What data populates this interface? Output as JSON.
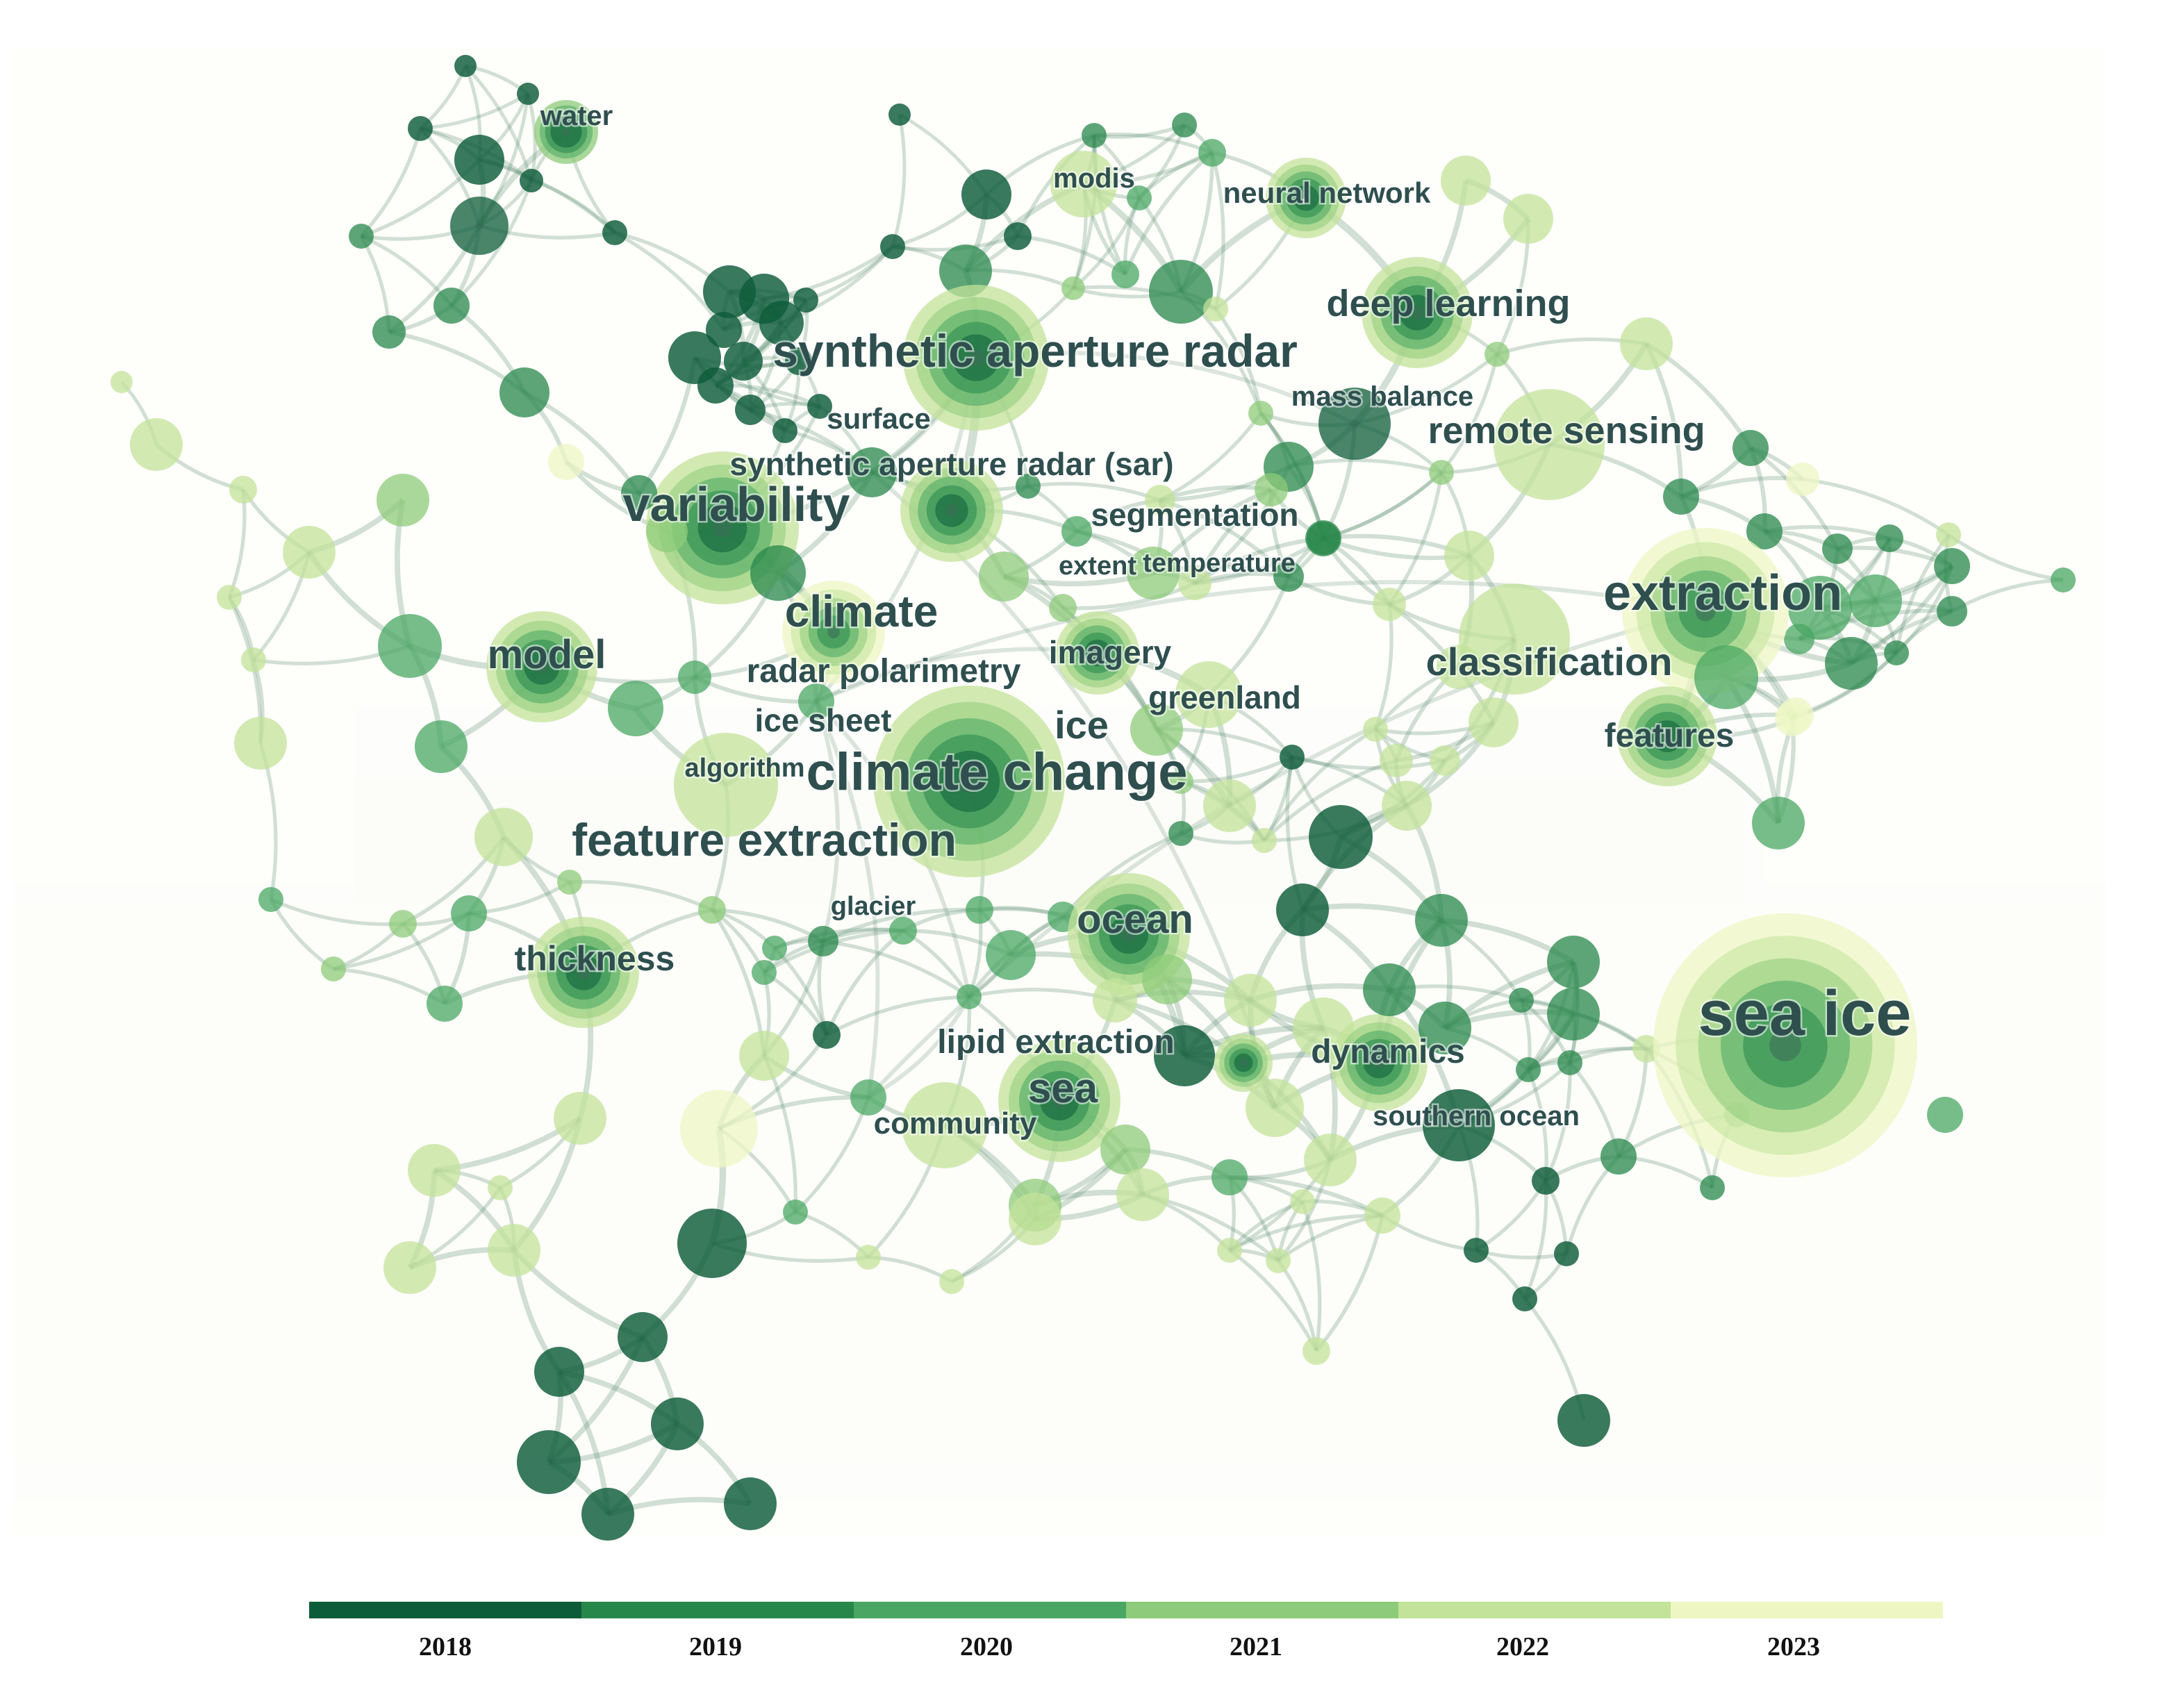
{
  "colors": {
    "2018": "#0d5c39",
    "2019": "#27874a",
    "2020": "#49a763",
    "2021": "#8ecb7a",
    "2022": "#c3e39a",
    "2023": "#eef7c4",
    "label": "#2f4f4f",
    "edge": "#5f8f73"
  },
  "legend": {
    "years": [
      "2018",
      "2019",
      "2020",
      "2021",
      "2022",
      "2023"
    ]
  },
  "labels": [
    {
      "text": "water"
    },
    {
      "text": "modis"
    },
    {
      "text": "neural network"
    },
    {
      "text": "deep learning"
    },
    {
      "text": "synthetic aperture radar"
    },
    {
      "text": "mass balance"
    },
    {
      "text": "surface"
    },
    {
      "text": "remote sensing"
    },
    {
      "text": "synthetic aperture radar (sar)"
    },
    {
      "text": "variability"
    },
    {
      "text": "segmentation"
    },
    {
      "text": "extent"
    },
    {
      "text": "temperature"
    },
    {
      "text": "extraction"
    },
    {
      "text": "climate"
    },
    {
      "text": "model"
    },
    {
      "text": "imagery"
    },
    {
      "text": "classification"
    },
    {
      "text": "radar polarimetry"
    },
    {
      "text": "greenland"
    },
    {
      "text": "ice sheet"
    },
    {
      "text": "ice"
    },
    {
      "text": "features"
    },
    {
      "text": "algorithm"
    },
    {
      "text": "climate change"
    },
    {
      "text": "feature extraction"
    },
    {
      "text": "glacier"
    },
    {
      "text": "ocean"
    },
    {
      "text": "thickness"
    },
    {
      "text": "sea ice"
    },
    {
      "text": "lipid extraction"
    },
    {
      "text": "dynamics"
    },
    {
      "text": "sea"
    },
    {
      "text": "southern ocean"
    },
    {
      "text": "community"
    }
  ]
}
